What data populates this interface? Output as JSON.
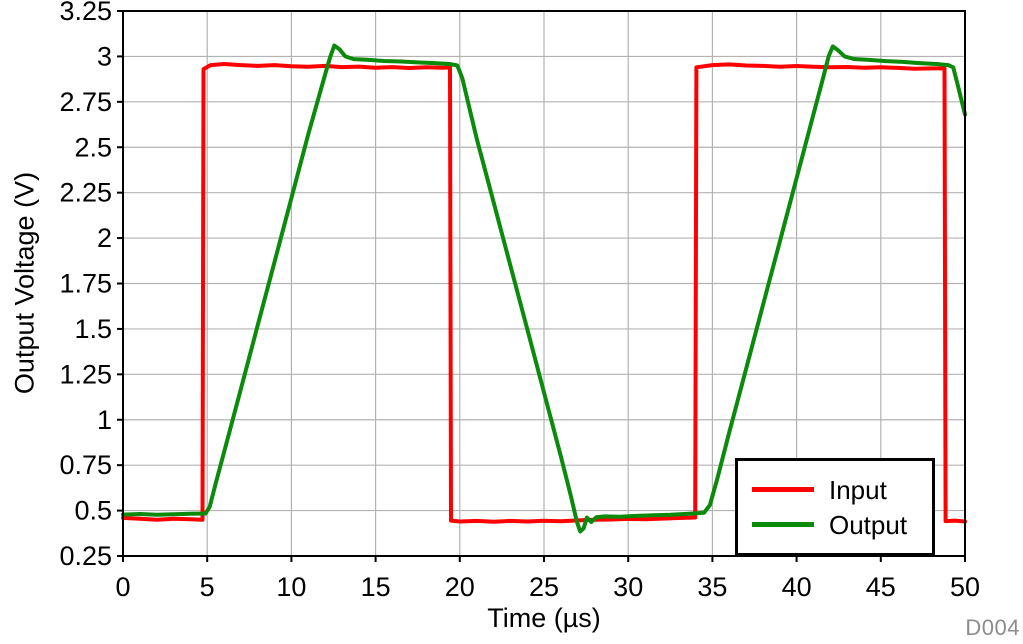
{
  "figure": {
    "watermark": "D004",
    "background_color": "#ffffff",
    "frame_color": "#000000",
    "text_color": "#000000",
    "watermark_color": "#8c8c8c"
  },
  "chart_data": {
    "type": "line",
    "title": "",
    "xlabel": "Time (µs)",
    "ylabel": "Output Voltage (V)",
    "xlim": [
      0,
      50
    ],
    "ylim": [
      0.25,
      3.25
    ],
    "grid": true,
    "grid_color": "#b3b3b3",
    "xticks": {
      "values": [
        0,
        5,
        10,
        15,
        20,
        25,
        30,
        35,
        40,
        45,
        50
      ],
      "labels": [
        "0",
        "5",
        "10",
        "15",
        "20",
        "25",
        "30",
        "35",
        "40",
        "45",
        "50"
      ]
    },
    "yticks": {
      "values": [
        0.25,
        0.5,
        0.75,
        1,
        1.25,
        1.5,
        1.75,
        2,
        2.25,
        2.5,
        2.75,
        3,
        3.25
      ],
      "labels": [
        "0.25",
        "0.5",
        "0.75",
        "1",
        "1.25",
        "1.5",
        "1.75",
        "2",
        "2.25",
        "2.5",
        "2.75",
        "3",
        "3.25"
      ]
    },
    "legend": {
      "position": "lower right",
      "entries": [
        {
          "label": "Input",
          "color": "#ff0000"
        },
        {
          "label": "Output",
          "color": "#0b8a0b"
        }
      ]
    },
    "series": [
      {
        "name": "Input",
        "color": "#ff0000",
        "description": "Square wave: low 0.45 V, high 2.95 V, rising edges near t=4.8 and t=34, falling edges near t=19.5 and t=48.8 µs",
        "points": [
          [
            0,
            0.46
          ],
          [
            1,
            0.455
          ],
          [
            2,
            0.45
          ],
          [
            3,
            0.455
          ],
          [
            4,
            0.452
          ],
          [
            4.72,
            0.45
          ],
          [
            4.78,
            2.93
          ],
          [
            5.2,
            2.952
          ],
          [
            6,
            2.958
          ],
          [
            7,
            2.952
          ],
          [
            8,
            2.948
          ],
          [
            9,
            2.952
          ],
          [
            10,
            2.946
          ],
          [
            11,
            2.943
          ],
          [
            12,
            2.948
          ],
          [
            13,
            2.941
          ],
          [
            14,
            2.944
          ],
          [
            15,
            2.938
          ],
          [
            16,
            2.941
          ],
          [
            17,
            2.936
          ],
          [
            18,
            2.94
          ],
          [
            19,
            2.938
          ],
          [
            19.42,
            2.94
          ],
          [
            19.48,
            0.445
          ],
          [
            20,
            0.44
          ],
          [
            21,
            0.443
          ],
          [
            22,
            0.438
          ],
          [
            23,
            0.443
          ],
          [
            24,
            0.44
          ],
          [
            25,
            0.444
          ],
          [
            26,
            0.441
          ],
          [
            27,
            0.446
          ],
          [
            28,
            0.449
          ],
          [
            29,
            0.451
          ],
          [
            30,
            0.454
          ],
          [
            31,
            0.452
          ],
          [
            32,
            0.456
          ],
          [
            33,
            0.459
          ],
          [
            33.98,
            0.462
          ],
          [
            34.05,
            2.94
          ],
          [
            35,
            2.952
          ],
          [
            36,
            2.956
          ],
          [
            37,
            2.95
          ],
          [
            38,
            2.948
          ],
          [
            39,
            2.943
          ],
          [
            40,
            2.947
          ],
          [
            41,
            2.943
          ],
          [
            42,
            2.94
          ],
          [
            43,
            2.942
          ],
          [
            44,
            2.938
          ],
          [
            45,
            2.94
          ],
          [
            46,
            2.937
          ],
          [
            47,
            2.932
          ],
          [
            48,
            2.934
          ],
          [
            48.78,
            2.934
          ],
          [
            48.85,
            0.442
          ],
          [
            49.4,
            0.445
          ],
          [
            50,
            0.44
          ]
        ]
      },
      {
        "name": "Output",
        "color": "#0b8a0b",
        "description": "Slew-limited response ~0.35 V/µs with ~3.06 V overshoot and ~0.38 V undershoot",
        "points": [
          [
            0,
            0.478
          ],
          [
            1,
            0.481
          ],
          [
            2,
            0.477
          ],
          [
            3,
            0.48
          ],
          [
            4,
            0.483
          ],
          [
            4.9,
            0.484
          ],
          [
            5.15,
            0.52
          ],
          [
            5.5,
            0.648
          ],
          [
            6,
            0.82
          ],
          [
            7,
            1.17
          ],
          [
            8,
            1.52
          ],
          [
            9,
            1.87
          ],
          [
            10,
            2.22
          ],
          [
            11,
            2.57
          ],
          [
            12,
            2.9
          ],
          [
            12.3,
            2.995
          ],
          [
            12.55,
            3.06
          ],
          [
            12.85,
            3.04
          ],
          [
            13.2,
            3.0
          ],
          [
            13.7,
            2.985
          ],
          [
            14.5,
            2.982
          ],
          [
            15.5,
            2.975
          ],
          [
            16.5,
            2.972
          ],
          [
            17.5,
            2.967
          ],
          [
            18.5,
            2.963
          ],
          [
            19.4,
            2.958
          ],
          [
            19.85,
            2.95
          ],
          [
            20.15,
            2.88
          ],
          [
            21,
            2.55
          ],
          [
            22,
            2.2
          ],
          [
            23,
            1.85
          ],
          [
            24,
            1.5
          ],
          [
            25,
            1.15
          ],
          [
            26,
            0.8
          ],
          [
            26.6,
            0.58
          ],
          [
            26.95,
            0.44
          ],
          [
            27.15,
            0.385
          ],
          [
            27.35,
            0.402
          ],
          [
            27.55,
            0.462
          ],
          [
            27.8,
            0.437
          ],
          [
            28.1,
            0.463
          ],
          [
            28.6,
            0.468
          ],
          [
            29.5,
            0.466
          ],
          [
            30.5,
            0.471
          ],
          [
            31.5,
            0.474
          ],
          [
            32.5,
            0.477
          ],
          [
            33.5,
            0.482
          ],
          [
            34.5,
            0.488
          ],
          [
            34.85,
            0.53
          ],
          [
            35.3,
            0.68
          ],
          [
            36,
            0.93
          ],
          [
            37,
            1.28
          ],
          [
            38,
            1.63
          ],
          [
            39,
            1.98
          ],
          [
            40,
            2.33
          ],
          [
            41,
            2.68
          ],
          [
            41.6,
            2.89
          ],
          [
            41.9,
            3.0
          ],
          [
            42.15,
            3.055
          ],
          [
            42.45,
            3.035
          ],
          [
            42.85,
            3.0
          ],
          [
            43.4,
            2.986
          ],
          [
            44.3,
            2.981
          ],
          [
            45.3,
            2.974
          ],
          [
            46.3,
            2.97
          ],
          [
            47.3,
            2.963
          ],
          [
            48.3,
            2.958
          ],
          [
            49,
            2.952
          ],
          [
            49.3,
            2.94
          ],
          [
            49.6,
            2.83
          ],
          [
            50,
            2.68
          ]
        ]
      }
    ]
  }
}
